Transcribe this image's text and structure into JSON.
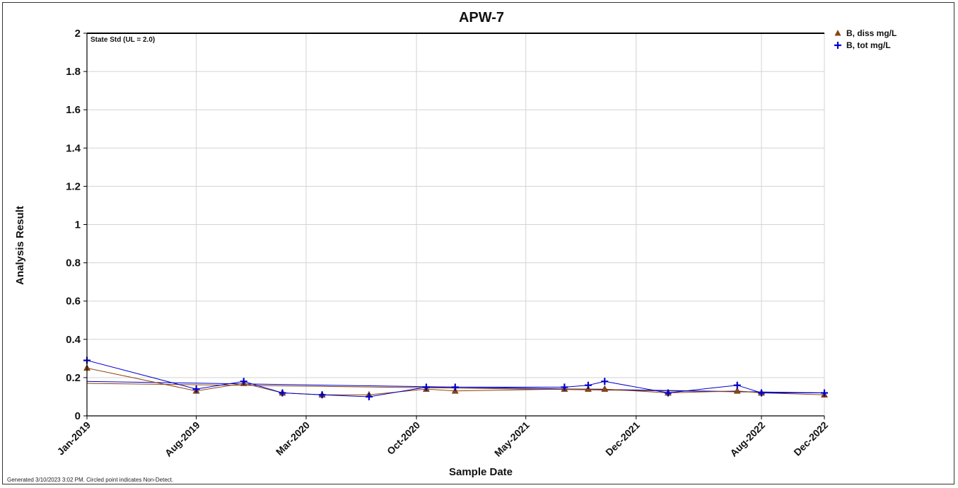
{
  "chart_data": {
    "type": "line",
    "title": "APW-7",
    "xlabel": "Sample Date",
    "ylabel": "Analysis Result",
    "ylim": [
      0,
      2
    ],
    "yticks": [
      "0",
      "0.2",
      "0.4",
      "0.6",
      "0.8",
      "1",
      "1.2",
      "1.4",
      "1.6",
      "1.8",
      "2"
    ],
    "xticks": [
      {
        "date": "2019-01-01",
        "label": "Jan-2019"
      },
      {
        "date": "2019-08-01",
        "label": "Aug-2019"
      },
      {
        "date": "2020-03-01",
        "label": "Mar-2020"
      },
      {
        "date": "2020-10-01",
        "label": "Oct-2020"
      },
      {
        "date": "2021-05-01",
        "label": "May-2021"
      },
      {
        "date": "2021-12-01",
        "label": "Dec-2021"
      },
      {
        "date": "2022-08-01",
        "label": "Aug-2022"
      },
      {
        "date": "2022-12-01",
        "label": "Dec-2022"
      }
    ],
    "grid": true,
    "legend_position": "top-right",
    "reference_line": {
      "value": 2.0,
      "label": "State Std (UL = 2.0)"
    },
    "series": [
      {
        "name": "B, diss mg/L",
        "color": "#8B4513",
        "marker": "triangle",
        "points": [
          {
            "x": "2019-01-01",
            "y": 0.25
          },
          {
            "x": "2019-08-01",
            "y": 0.13
          },
          {
            "x": "2019-11-01",
            "y": 0.17
          },
          {
            "x": "2020-01-15",
            "y": 0.12
          },
          {
            "x": "2020-04-01",
            "y": 0.11
          },
          {
            "x": "2020-07-01",
            "y": 0.11
          },
          {
            "x": "2020-10-20",
            "y": 0.14
          },
          {
            "x": "2020-12-15",
            "y": 0.13
          },
          {
            "x": "2021-07-15",
            "y": 0.14
          },
          {
            "x": "2021-08-30",
            "y": 0.14
          },
          {
            "x": "2021-10-01",
            "y": 0.14
          },
          {
            "x": "2022-02-01",
            "y": 0.12
          },
          {
            "x": "2022-06-15",
            "y": 0.13
          },
          {
            "x": "2022-08-01",
            "y": 0.12
          },
          {
            "x": "2022-12-01",
            "y": 0.11
          }
        ],
        "trend": [
          0.17,
          0.12
        ]
      },
      {
        "name": "B, tot mg/L",
        "color": "#0000CC",
        "marker": "plus",
        "points": [
          {
            "x": "2019-01-01",
            "y": 0.29
          },
          {
            "x": "2019-08-01",
            "y": 0.14
          },
          {
            "x": "2019-11-01",
            "y": 0.18
          },
          {
            "x": "2020-01-15",
            "y": 0.12
          },
          {
            "x": "2020-04-01",
            "y": 0.11
          },
          {
            "x": "2020-07-01",
            "y": 0.1
          },
          {
            "x": "2020-10-20",
            "y": 0.15
          },
          {
            "x": "2020-12-15",
            "y": 0.15
          },
          {
            "x": "2021-07-15",
            "y": 0.15
          },
          {
            "x": "2021-08-30",
            "y": 0.16
          },
          {
            "x": "2021-10-01",
            "y": 0.18
          },
          {
            "x": "2022-02-01",
            "y": 0.12
          },
          {
            "x": "2022-06-15",
            "y": 0.16
          },
          {
            "x": "2022-08-01",
            "y": 0.12
          },
          {
            "x": "2022-12-01",
            "y": 0.12
          }
        ],
        "trend": [
          0.18,
          0.12
        ]
      }
    ]
  },
  "footer_note": "Generated 3/10/2023 3:02 PM. Circled point indicates Non-Detect."
}
